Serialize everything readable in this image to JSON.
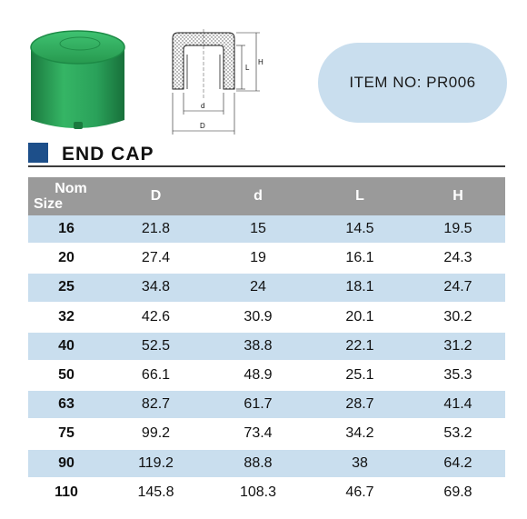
{
  "item": {
    "label": "ITEM  NO: PR006"
  },
  "title": "END  CAP",
  "drawing": {
    "d_label": "d",
    "D_label": "D",
    "L_label": "L",
    "H_label": "H"
  },
  "colors": {
    "accent_blue": "#1d4f8a",
    "band": "#c9deee",
    "header_gray": "#9a9a9a",
    "product_green": "#2aa15a"
  },
  "table": {
    "header": {
      "nom_line1": "Nom",
      "nom_line2": "Size",
      "D": "D",
      "d": "d",
      "L": "L",
      "H": "H"
    },
    "rows": [
      {
        "size": "16",
        "D": "21.8",
        "d": "15",
        "L": "14.5",
        "H": "19.5"
      },
      {
        "size": "20",
        "D": "27.4",
        "d": "19",
        "L": "16.1",
        "H": "24.3"
      },
      {
        "size": "25",
        "D": "34.8",
        "d": "24",
        "L": "18.1",
        "H": "24.7"
      },
      {
        "size": "32",
        "D": "42.6",
        "d": "30.9",
        "L": "20.1",
        "H": "30.2"
      },
      {
        "size": "40",
        "D": "52.5",
        "d": "38.8",
        "L": "22.1",
        "H": "31.2"
      },
      {
        "size": "50",
        "D": "66.1",
        "d": "48.9",
        "L": "25.1",
        "H": "35.3"
      },
      {
        "size": "63",
        "D": "82.7",
        "d": "61.7",
        "L": "28.7",
        "H": "41.4"
      },
      {
        "size": "75",
        "D": "99.2",
        "d": "73.4",
        "L": "34.2",
        "H": "53.2"
      },
      {
        "size": "90",
        "D": "119.2",
        "d": "88.8",
        "L": "38",
        "H": "64.2"
      },
      {
        "size": "110",
        "D": "145.8",
        "d": "108.3",
        "L": "46.7",
        "H": "69.8"
      }
    ]
  }
}
